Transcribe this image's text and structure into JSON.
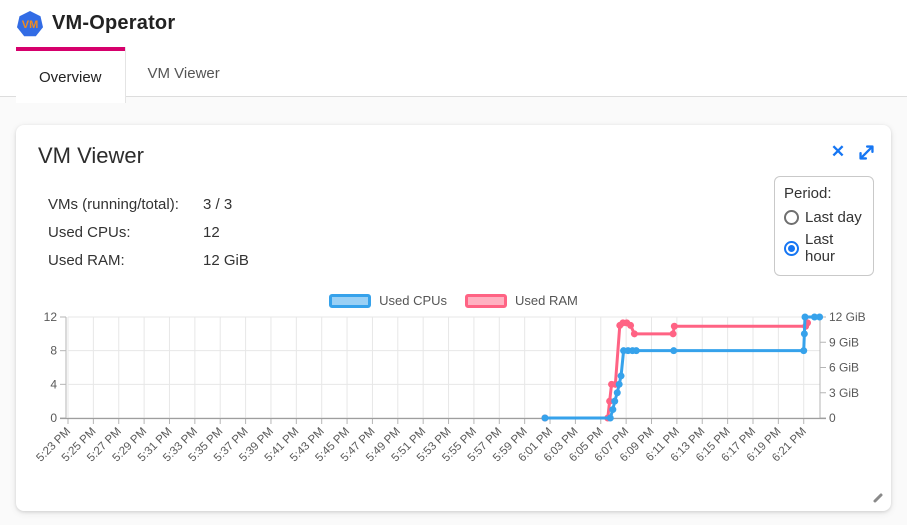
{
  "app": {
    "title": "VM-Operator",
    "logo_text": "VM"
  },
  "colors": {
    "tab_accent": "#d6006c",
    "icon_blue": "#1676f3",
    "logo_bg": "#326ce5",
    "logo_text": "#f08c1e"
  },
  "icons": {
    "close_icon": "✕",
    "expand_icon": "open-in-full",
    "resize_icon": "diagonal-grip",
    "logo_icon": "heptagon-vm"
  },
  "tabs": [
    {
      "label": "Overview",
      "active": true
    },
    {
      "label": "VM Viewer",
      "active": false
    }
  ],
  "card": {
    "title": "VM Viewer",
    "stats": [
      {
        "label": "VMs (running/total):",
        "value": "3 / 3"
      },
      {
        "label": "Used CPUs:",
        "value": "12"
      },
      {
        "label": "Used RAM:",
        "value": "12 GiB"
      }
    ],
    "period": {
      "label": "Period:",
      "options": [
        {
          "label": "Last day",
          "selected": false
        },
        {
          "label": "Last hour",
          "selected": true
        }
      ]
    }
  },
  "chart_data": {
    "type": "line",
    "title": "",
    "legend_position": "top",
    "grid": true,
    "x_unit": "minutes after 5:23 PM, ticks every 2 min",
    "x_tick_labels": [
      "5:23 PM",
      "5:25 PM",
      "5:27 PM",
      "5:29 PM",
      "5:31 PM",
      "5:33 PM",
      "5:35 PM",
      "5:37 PM",
      "5:39 PM",
      "5:41 PM",
      "5:43 PM",
      "5:45 PM",
      "5:47 PM",
      "5:49 PM",
      "5:51 PM",
      "5:53 PM",
      "5:55 PM",
      "5:57 PM",
      "5:59 PM",
      "6:01 PM",
      "6:03 PM",
      "6:05 PM",
      "6:07 PM",
      "6:09 PM",
      "6:11 PM",
      "6:13 PM",
      "6:15 PM",
      "6:17 PM",
      "6:19 PM",
      "6:21 PM"
    ],
    "y_left": {
      "ticks": [
        0,
        4,
        8,
        12
      ],
      "max": 12
    },
    "y_right": {
      "tick_labels": [
        "0",
        "3 GiB",
        "6 GiB",
        "9 GiB",
        "12 GiB"
      ],
      "tick_values": [
        0,
        3,
        6,
        9,
        12
      ],
      "max": 12
    },
    "series": [
      {
        "name": "Used CPUs",
        "axis": "left",
        "color": "#36A2EB",
        "legend_fill": "#9AD0F5",
        "points": [
          [
            37.6,
            0
          ],
          [
            42.75,
            0
          ],
          [
            42.95,
            1
          ],
          [
            43.1,
            2
          ],
          [
            43.3,
            3
          ],
          [
            43.45,
            4
          ],
          [
            43.6,
            5
          ],
          [
            43.8,
            8
          ],
          [
            44.15,
            8
          ],
          [
            44.5,
            8
          ],
          [
            44.8,
            8
          ],
          [
            47.75,
            8
          ],
          [
            58.0,
            8
          ],
          [
            58.05,
            10
          ],
          [
            58.1,
            12
          ],
          [
            58.85,
            12
          ],
          [
            59.25,
            12
          ]
        ]
      },
      {
        "name": "Used RAM",
        "axis": "right",
        "color": "#FF6384",
        "legend_fill": "#FFB1C1",
        "points": [
          [
            37.6,
            0
          ],
          [
            42.55,
            0
          ],
          [
            42.7,
            2
          ],
          [
            42.85,
            4
          ],
          [
            43.15,
            4
          ],
          [
            43.5,
            11
          ],
          [
            43.75,
            11.3
          ],
          [
            44.05,
            11.3
          ],
          [
            44.35,
            11
          ],
          [
            44.65,
            10
          ],
          [
            47.7,
            10
          ],
          [
            47.8,
            10.9
          ],
          [
            58.15,
            10.9
          ],
          [
            58.3,
            11.3
          ]
        ]
      }
    ]
  }
}
